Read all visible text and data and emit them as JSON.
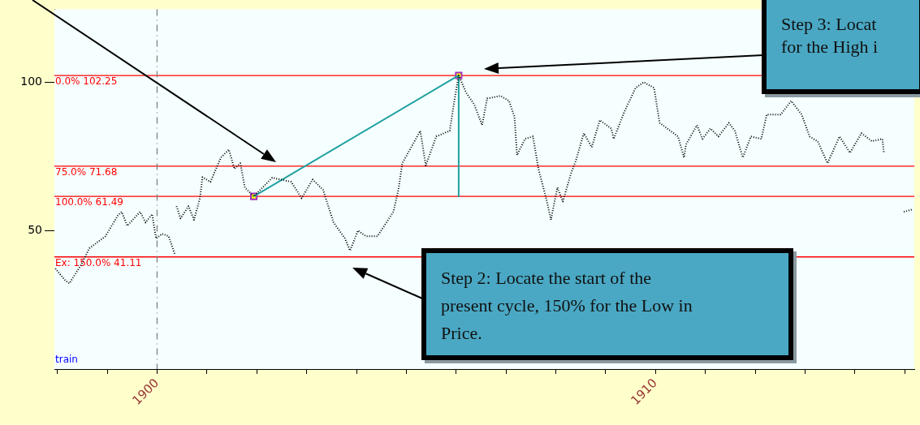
{
  "chart_data": {
    "type": "line",
    "xlim": [
      1897.94,
      1915.19
    ],
    "xticks": [
      {
        "value": 1898,
        "label": null
      },
      {
        "value": 1899,
        "label": null
      },
      1900,
      {
        "value": 1901,
        "label": null
      },
      {
        "value": 1902,
        "label": null
      },
      {
        "value": 1903,
        "label": null
      },
      {
        "value": 1904,
        "label": null
      },
      {
        "value": 1905,
        "label": null
      },
      {
        "value": 1906,
        "label": null
      },
      {
        "value": 1907,
        "label": null
      },
      {
        "value": 1908,
        "label": null
      },
      {
        "value": 1909,
        "label": null
      },
      1910,
      {
        "value": 1911,
        "label": null
      },
      {
        "value": 1912,
        "label": null
      },
      {
        "value": 1913,
        "label": null
      },
      {
        "value": 1914,
        "label": null
      },
      {
        "value": 1915,
        "label": null
      }
    ],
    "ylim": [
      3.3,
      124.6
    ],
    "yticks": [
      50,
      100
    ],
    "line_style": "dotted",
    "series": [
      {
        "color": "#000000",
        "x": [
          1897.96,
          1898.16,
          1898.24,
          1898.48,
          1898.64,
          1898.96,
          1899.21,
          1899.29,
          1899.4,
          1899.66,
          1899.77,
          1899.9,
          1899.98,
          1900.1,
          1900.23,
          1900.36,
          1900.37,
          1900.39,
          1900.47,
          1900.63,
          1900.74,
          1900.86,
          1900.91,
          1901.07,
          1901.28,
          1901.44,
          1901.55,
          1901.67,
          1901.76,
          1901.94,
          1902.31,
          1902.69,
          1902.9,
          1903.12,
          1903.33,
          1903.54,
          1903.77,
          1903.87,
          1904.03,
          1904.19,
          1904.42,
          1904.74,
          1904.84,
          1904.92,
          1905.28,
          1905.39,
          1905.6,
          1905.87,
          1905.97,
          1906.05,
          1906.2,
          1906.36,
          1906.52,
          1906.62,
          1906.89,
          1907.06,
          1907.17,
          1907.22,
          1907.38,
          1907.54,
          1907.65,
          1907.82,
          1907.9,
          1908.03,
          1908.14,
          1908.3,
          1908.4,
          1908.56,
          1908.72,
          1908.88,
          1909.11,
          1909.16,
          1909.37,
          1909.6,
          1909.76,
          1909.97,
          1910.08,
          1910.45,
          1910.57,
          1910.61,
          1910.83,
          1910.94,
          1911.1,
          1911.26,
          1911.47,
          1911.59,
          1911.75,
          1911.91,
          1912.12,
          1912.23,
          1912.51,
          1912.72,
          1912.93,
          1913.09,
          1913.25,
          1913.45,
          1913.69,
          1913.9,
          1914.13,
          1914.34,
          1914.55,
          1914.58,
          1914.7,
          1914.98,
          1915.15
        ],
        "values": [
          37.2,
          33.1,
          32.2,
          38.5,
          44,
          48,
          55,
          56.3,
          51.6,
          56.3,
          52.7,
          55.5,
          47.3,
          48.9,
          48.1,
          41.8,
          null,
          58.2,
          54.1,
          58.2,
          53.6,
          60.9,
          68,
          66.4,
          74.6,
          77.3,
          70.8,
          72.7,
          64.5,
          61.5,
          67.8,
          66.4,
          60.9,
          67.2,
          63.7,
          52.7,
          47.3,
          43.2,
          50,
          48.1,
          48.1,
          56.3,
          63.7,
          72.7,
          83.6,
          71.9,
          81.7,
          83.6,
          94.5,
          102.3,
          96.4,
          92.6,
          85.5,
          94.5,
          95.4,
          93.7,
          88.3,
          75.4,
          80.9,
          81.7,
          70.8,
          59.8,
          53.6,
          64.5,
          59.8,
          69.1,
          73.5,
          82.8,
          78.1,
          87.2,
          84.4,
          80.9,
          89.9,
          98.1,
          100,
          98.1,
          86.3,
          81.7,
          74.6,
          79,
          85.5,
          80.9,
          84.4,
          81.7,
          86.3,
          83.6,
          74.6,
          81.7,
          80.9,
          89.1,
          89.1,
          93.7,
          89.1,
          81.7,
          80.1,
          72.7,
          81.7,
          76.2,
          82.8,
          80.1,
          80.9,
          76.2,
          null,
          56.3,
          57.1
        ]
      },
      {
        "type": "line",
        "color": "#20a0a0",
        "line_style": "solid",
        "x": [
          1901.94,
          1906.05,
          1906.05
        ],
        "values": [
          61.5,
          102.3,
          61.5
        ]
      },
      {
        "type": "scatter",
        "color": "#a030c0",
        "marker": "square",
        "x": [
          1901.94,
          1906.05
        ],
        "values": [
          61.5,
          102.3
        ]
      }
    ],
    "ref_lines": [
      {
        "axis": "y",
        "value": 102.25,
        "label": "0.0% 102.25",
        "color": "#ff0000"
      },
      {
        "axis": "y",
        "value": 71.68,
        "label": "75.0% 71.68",
        "color": "#ff0000"
      },
      {
        "axis": "y",
        "value": 61.49,
        "label": "100.0% 61.49",
        "color": "#ff0000"
      },
      {
        "axis": "y",
        "value": 41.11,
        "label": "Ex: 150.0% 41.11",
        "color": "#ff0000"
      },
      {
        "axis": "x",
        "value": 1900,
        "color": "#808080",
        "line_style": "dashed"
      }
    ],
    "annotations": [
      "Step 3: Locat\nfor the High i",
      "Step 2: Locate the start of the present cycle, 150% for the Low in Price.",
      "train"
    ]
  }
}
